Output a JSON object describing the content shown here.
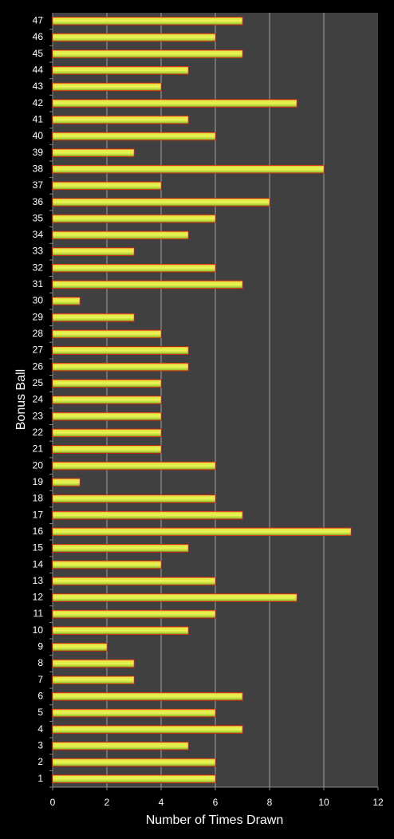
{
  "chart_data": {
    "type": "barh",
    "ylabel": "Bonus Ball",
    "xlabel": "Number of Times Drawn",
    "categories": [
      "1",
      "2",
      "3",
      "4",
      "5",
      "6",
      "7",
      "8",
      "9",
      "10",
      "11",
      "12",
      "13",
      "14",
      "15",
      "16",
      "17",
      "18",
      "19",
      "20",
      "21",
      "22",
      "23",
      "24",
      "25",
      "26",
      "27",
      "28",
      "29",
      "30",
      "31",
      "32",
      "33",
      "34",
      "35",
      "36",
      "37",
      "38",
      "39",
      "40",
      "41",
      "42",
      "43",
      "44",
      "45",
      "46",
      "47"
    ],
    "values": [
      6,
      6,
      5,
      7,
      6,
      7,
      3,
      3,
      2,
      5,
      6,
      9,
      6,
      4,
      5,
      11,
      7,
      6,
      1,
      6,
      4,
      4,
      4,
      4,
      4,
      5,
      5,
      4,
      3,
      1,
      7,
      6,
      3,
      5,
      6,
      8,
      4,
      10,
      3,
      6,
      5,
      9,
      4,
      5,
      7,
      6,
      7
    ],
    "color": "#c8e040",
    "edge_color": "#e02010",
    "xlim": [
      0,
      12
    ],
    "xticks": [
      0,
      2,
      4,
      6,
      8,
      10,
      12
    ],
    "grid": true
  }
}
